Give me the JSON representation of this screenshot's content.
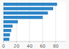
{
  "chart_data": {
    "type": "bar",
    "orientation": "horizontal",
    "values": [
      82,
      76,
      68,
      60,
      22,
      14,
      12,
      10,
      9
    ],
    "color": "#2e86c8",
    "xlim": [
      0,
      95
    ],
    "xticks": [
      0,
      20,
      40,
      60,
      80
    ],
    "grid": true,
    "tick_labels": "x"
  }
}
